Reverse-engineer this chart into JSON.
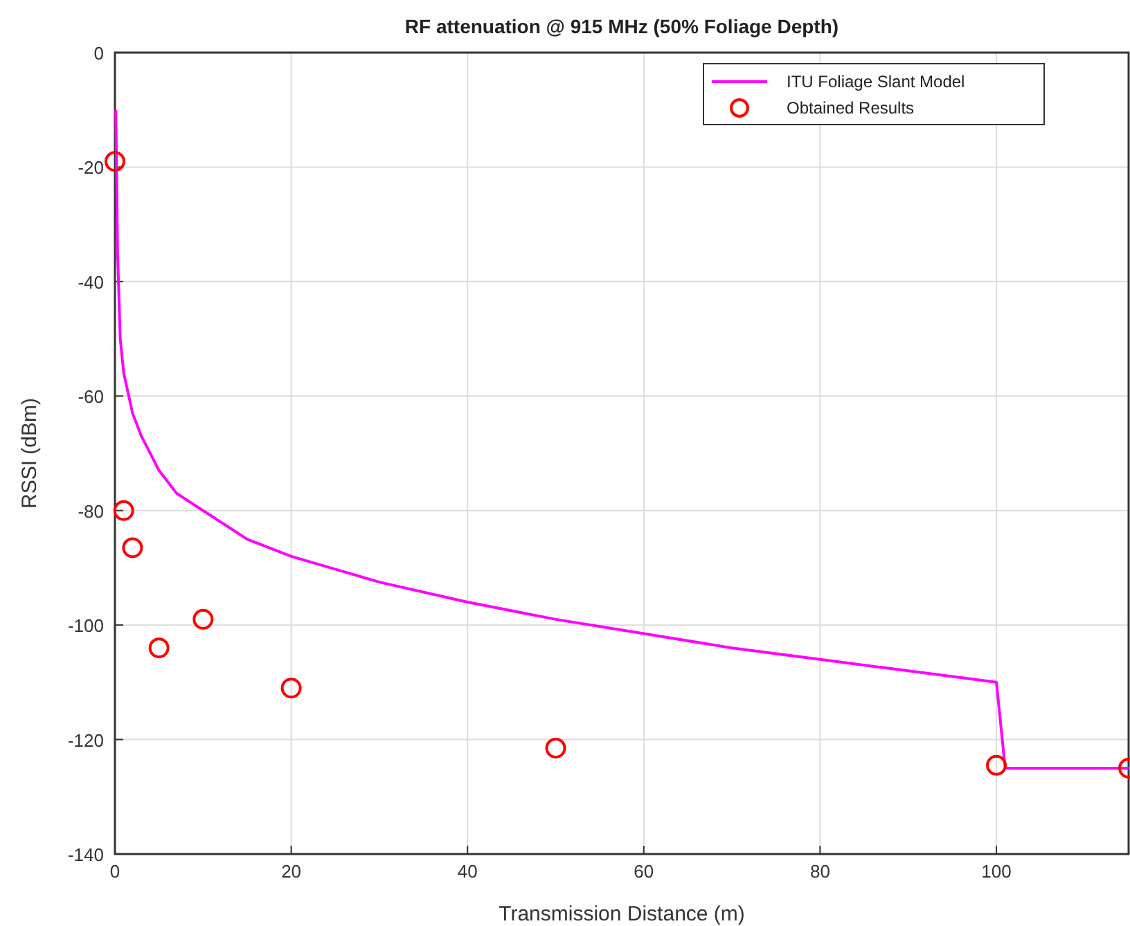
{
  "chart_data": {
    "type": "line",
    "title": "RF attenuation @ 915 MHz (50% Foliage Depth)",
    "xlabel": "Transmission Distance (m)",
    "ylabel": "RSSI (dBm)",
    "xlim": [
      0,
      115
    ],
    "ylim": [
      -140,
      0
    ],
    "xticks": [
      0,
      20,
      40,
      60,
      80,
      100
    ],
    "yticks": [
      -140,
      -120,
      -100,
      -80,
      -60,
      -40,
      -20,
      0
    ],
    "grid": true,
    "legend": "top right",
    "series": [
      {
        "name": "ITU Foliage Slant Model",
        "color": "#ff00ff",
        "marker": "none",
        "x": [
          0.1,
          0.3,
          0.6,
          1,
          2,
          3,
          5,
          7,
          10,
          15,
          20,
          30,
          40,
          50,
          60,
          70,
          80,
          90,
          100,
          101,
          115
        ],
        "values": [
          -10,
          -35,
          -50,
          -56,
          -63,
          -67,
          -73,
          -77,
          -80,
          -85,
          -88,
          -92.5,
          -96,
          -99,
          -101.5,
          -104,
          -106,
          -108,
          -110,
          -125,
          -125
        ]
      },
      {
        "name": "Obtained Results",
        "type": "scatter",
        "color": "#ff0000",
        "marker": "circle",
        "x": [
          0,
          1,
          2,
          5,
          10,
          20,
          50,
          100,
          115
        ],
        "values": [
          -19,
          -80,
          -86.5,
          -104,
          -99,
          -111,
          -121.5,
          -124.5,
          -125
        ]
      }
    ]
  }
}
